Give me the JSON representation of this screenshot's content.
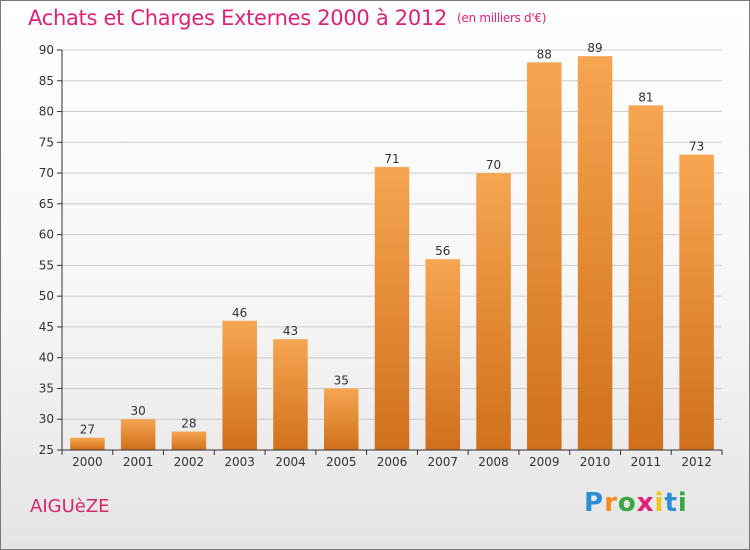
{
  "header": {
    "title": "Achats et Charges Externes 2000 à 2012",
    "unit": "(en milliers d'€)"
  },
  "footer": {
    "town": "AIGUèZE",
    "logo": {
      "letters": [
        "P",
        "r",
        "o",
        "x",
        "i",
        "t",
        "i"
      ],
      "colors": [
        "#2a8fd6",
        "#f28c1c",
        "#3aa842",
        "#e0207a",
        "#f2c21c",
        "#2a8fd6",
        "#3aa842"
      ]
    }
  },
  "colors": {
    "bar_light": "#f6a551",
    "bar_dark": "#d0701a",
    "grid": "#cccccc",
    "axis": "#333333",
    "title": "#e0207a"
  },
  "chart_data": {
    "type": "bar",
    "title": "Achats et Charges Externes 2000 à 2012",
    "subtitle": "(en milliers d'€)",
    "xlabel": "",
    "ylabel": "",
    "categories": [
      "2000",
      "2001",
      "2002",
      "2003",
      "2004",
      "2005",
      "2006",
      "2007",
      "2008",
      "2009",
      "2010",
      "2011",
      "2012"
    ],
    "values": [
      27,
      30,
      28,
      46,
      43,
      35,
      71,
      56,
      70,
      88,
      89,
      81,
      73
    ],
    "ylim": [
      25,
      90
    ],
    "yticks": [
      25,
      30,
      35,
      40,
      45,
      50,
      55,
      60,
      65,
      70,
      75,
      80,
      85,
      90
    ],
    "grid": true,
    "data_labels": true
  }
}
